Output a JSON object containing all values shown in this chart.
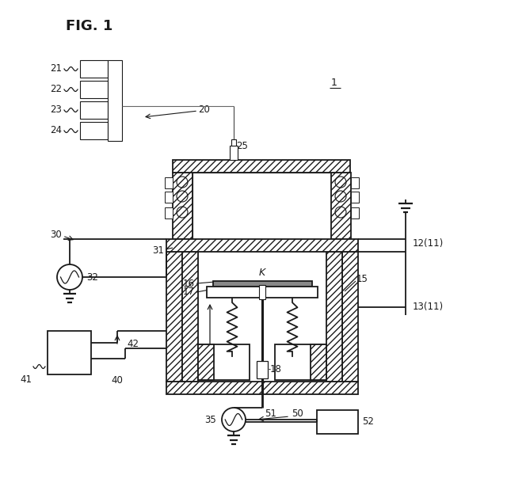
{
  "title": "FIG. 1",
  "bg": "#ffffff",
  "lc": "#1a1a1a",
  "figw": 6.4,
  "figh": 6.24,
  "dpi": 100
}
